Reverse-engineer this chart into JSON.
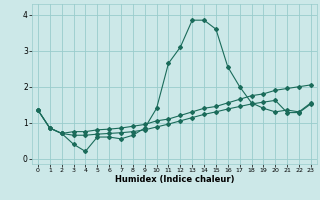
{
  "title": "",
  "xlabel": "Humidex (Indice chaleur)",
  "xlim": [
    -0.5,
    23.5
  ],
  "ylim": [
    -0.15,
    4.3
  ],
  "xticks": [
    0,
    1,
    2,
    3,
    4,
    5,
    6,
    7,
    8,
    9,
    10,
    11,
    12,
    13,
    14,
    15,
    16,
    17,
    18,
    19,
    20,
    21,
    22,
    23
  ],
  "yticks": [
    0,
    1,
    2,
    3,
    4
  ],
  "background_color": "#cce8e8",
  "grid_color": "#99cccc",
  "line_color": "#1a6b5a",
  "line1_x": [
    0,
    1,
    2,
    3,
    4,
    5,
    6,
    7,
    8,
    9,
    10,
    11,
    12,
    13,
    14,
    15,
    16,
    17,
    18,
    19,
    20,
    21,
    22,
    23
  ],
  "line1_y": [
    1.35,
    0.85,
    0.7,
    0.4,
    0.2,
    0.6,
    0.6,
    0.55,
    0.65,
    0.85,
    1.4,
    2.65,
    3.1,
    3.85,
    3.85,
    3.6,
    2.55,
    2.0,
    1.55,
    1.4,
    1.3,
    1.35,
    1.3,
    1.55
  ],
  "line2_x": [
    0,
    1,
    2,
    3,
    4,
    5,
    6,
    7,
    8,
    9,
    10,
    11,
    12,
    13,
    14,
    15,
    16,
    17,
    18,
    19,
    20,
    21,
    22,
    23
  ],
  "line2_y": [
    1.35,
    0.85,
    0.7,
    0.75,
    0.75,
    0.8,
    0.82,
    0.85,
    0.9,
    0.95,
    1.05,
    1.1,
    1.2,
    1.3,
    1.4,
    1.45,
    1.55,
    1.65,
    1.75,
    1.8,
    1.9,
    1.95,
    2.0,
    2.05
  ],
  "line3_x": [
    0,
    1,
    2,
    3,
    4,
    5,
    6,
    7,
    8,
    9,
    10,
    11,
    12,
    13,
    14,
    15,
    16,
    17,
    18,
    19,
    20,
    21,
    22,
    23
  ],
  "line3_y": [
    1.35,
    0.85,
    0.7,
    0.65,
    0.65,
    0.68,
    0.7,
    0.72,
    0.75,
    0.8,
    0.88,
    0.96,
    1.05,
    1.14,
    1.23,
    1.3,
    1.38,
    1.45,
    1.52,
    1.57,
    1.62,
    1.28,
    1.28,
    1.52
  ]
}
